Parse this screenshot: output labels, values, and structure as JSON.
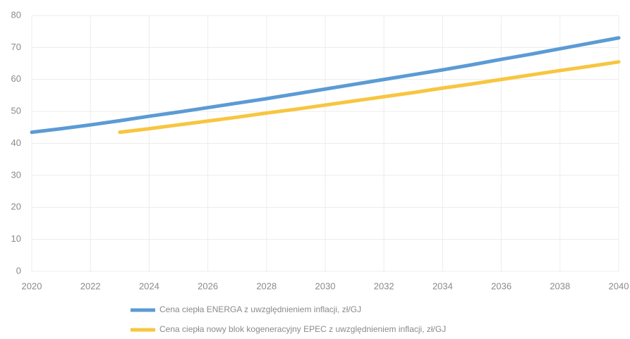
{
  "chart_data": {
    "type": "line",
    "x": [
      2020,
      2021,
      2022,
      2023,
      2024,
      2025,
      2026,
      2027,
      2028,
      2029,
      2030,
      2031,
      2032,
      2033,
      2034,
      2035,
      2036,
      2037,
      2038,
      2039,
      2040
    ],
    "series": [
      {
        "name": "Cena ciepła ENERGA z uwzględnieniem inflacji, zł/GJ",
        "color": "#5b9bd5",
        "values": [
          43.5,
          44.6,
          45.8,
          47.1,
          48.5,
          49.8,
          51.2,
          52.6,
          54,
          55.5,
          57,
          58.5,
          60,
          61.5,
          63,
          64.6,
          66.3,
          67.9,
          69.6,
          71.3,
          73
        ]
      },
      {
        "name": "Cena ciepła nowy blok kogeneracyjny EPEC z uwzględnieniem inflacji, zł/GJ",
        "color": "#f7c640",
        "values": [
          null,
          null,
          null,
          43.5,
          44.6,
          45.8,
          47,
          48.2,
          49.5,
          50.7,
          52,
          53.3,
          54.6,
          55.9,
          57.3,
          58.6,
          60,
          61.4,
          62.8,
          64.1,
          65.5
        ]
      }
    ],
    "xlim": [
      2020,
      2040
    ],
    "xticks": [
      2020,
      2022,
      2024,
      2026,
      2028,
      2030,
      2032,
      2034,
      2036,
      2038,
      2040
    ],
    "ylim": [
      0,
      80
    ],
    "yticks": [
      0,
      10,
      20,
      30,
      40,
      50,
      60,
      70,
      80
    ],
    "grid": true
  }
}
